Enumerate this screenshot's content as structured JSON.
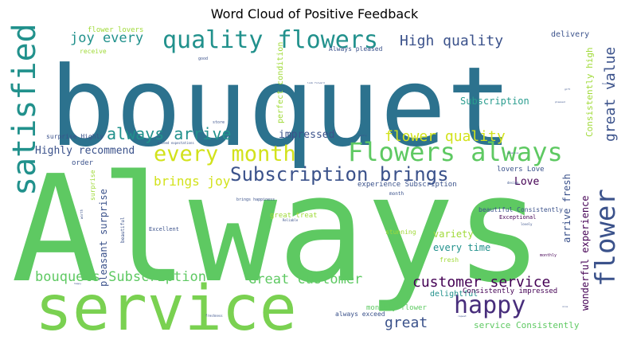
{
  "title": "Word Cloud of Positive Feedback",
  "palette": {
    "green": "#5ec962",
    "lightgreen": "#7ad151",
    "teal": "#21918c",
    "seagreen": "#2a9d8f",
    "tealblue": "#2c728e",
    "blue": "#3b528b",
    "indigo": "#472d7b",
    "purple": "#440154",
    "yellow": "#d2e21b",
    "lime": "#a0da39"
  },
  "words": [
    {
      "text": "Always",
      "color": "green"
    },
    {
      "text": "bouquet",
      "color": "tealblue"
    },
    {
      "text": "service",
      "color": "lightgreen"
    },
    {
      "text": "satisfied",
      "color": "teal"
    },
    {
      "text": "quality flowers",
      "color": "teal"
    },
    {
      "text": "Flowers always",
      "color": "green"
    },
    {
      "text": "every month",
      "color": "yellow"
    },
    {
      "text": "flower",
      "color": "blue"
    },
    {
      "text": "happy",
      "color": "indigo"
    },
    {
      "text": "Subscription brings",
      "color": "blue"
    },
    {
      "text": "always arrive",
      "color": "teal"
    },
    {
      "text": "High quality",
      "color": "blue"
    },
    {
      "text": "great value",
      "color": "blue"
    },
    {
      "text": "joy every",
      "color": "teal"
    },
    {
      "text": "flower quality",
      "color": "yellow"
    },
    {
      "text": "customer service",
      "color": "purple"
    },
    {
      "text": "Great customer",
      "color": "green"
    },
    {
      "text": "bouquets Subscription",
      "color": "green"
    },
    {
      "text": "Highly recommend",
      "color": "blue"
    },
    {
      "text": "brings joy",
      "color": "yellow"
    },
    {
      "text": "impressed",
      "color": "blue"
    },
    {
      "text": "great",
      "color": "blue"
    },
    {
      "text": "Subscription",
      "color": "seagreen"
    },
    {
      "text": "Consistently high",
      "color": "lime"
    },
    {
      "text": "perfect condition",
      "color": "lime"
    },
    {
      "text": "Love",
      "color": "purple"
    },
    {
      "text": "arrive fresh",
      "color": "blue"
    },
    {
      "text": "wonderful experience",
      "color": "purple"
    },
    {
      "text": "delivery",
      "color": "blue"
    },
    {
      "text": "flower lovers",
      "color": "lime"
    },
    {
      "text": "Always pleased",
      "color": "blue"
    },
    {
      "text": "receive",
      "color": "lime"
    },
    {
      "text": "experience Subscription",
      "color": "blue"
    },
    {
      "text": "lovers Love",
      "color": "blue"
    },
    {
      "text": "variety",
      "color": "lime"
    },
    {
      "text": "every time",
      "color": "teal"
    },
    {
      "text": "delightful",
      "color": "teal"
    },
    {
      "text": "service Consistently",
      "color": "green"
    },
    {
      "text": "monthly flower",
      "color": "green"
    },
    {
      "text": "always exceed",
      "color": "blue"
    },
    {
      "text": "Consistently impressed",
      "color": "purple"
    },
    {
      "text": "beautiful Consistently",
      "color": "blue"
    },
    {
      "text": "Exceptional",
      "color": "purple"
    },
    {
      "text": "pleasant surprise",
      "color": "blue"
    },
    {
      "text": "surprise Highly",
      "color": "blue"
    },
    {
      "text": "surprise",
      "color": "lime"
    },
    {
      "text": "order",
      "color": "blue"
    },
    {
      "text": "great treat",
      "color": "lime"
    },
    {
      "text": "Excellent",
      "color": "blue"
    },
    {
      "text": "stunning",
      "color": "lime"
    },
    {
      "text": "fresh",
      "color": "lime"
    },
    {
      "text": "monthly",
      "color": "purple"
    },
    {
      "text": "beautiful",
      "color": "blue"
    },
    {
      "text": "month",
      "color": "blue"
    },
    {
      "text": "store",
      "color": "blue"
    },
    {
      "text": "brings happiness",
      "color": "blue"
    },
    {
      "text": "exceed expectations",
      "color": "blue"
    },
    {
      "text": "worth",
      "color": "blue"
    },
    {
      "text": "design",
      "color": "blue"
    },
    {
      "text": "freshness",
      "color": "blue"
    },
    {
      "text": "lovely",
      "color": "blue"
    },
    {
      "text": "good",
      "color": "blue"
    },
    {
      "text": "look forward",
      "color": "blue"
    },
    {
      "text": "gift",
      "color": "blue"
    },
    {
      "text": "pleased",
      "color": "blue"
    },
    {
      "text": "Reliable",
      "color": "blue"
    },
    {
      "text": "Dependent",
      "color": "blue"
    },
    {
      "text": "generous",
      "color": "blue"
    },
    {
      "text": "really",
      "color": "blue"
    },
    {
      "text": "happy",
      "color": "blue"
    },
    {
      "text": "repeat",
      "color": "blue"
    },
    {
      "text": "nice",
      "color": "blue"
    }
  ]
}
